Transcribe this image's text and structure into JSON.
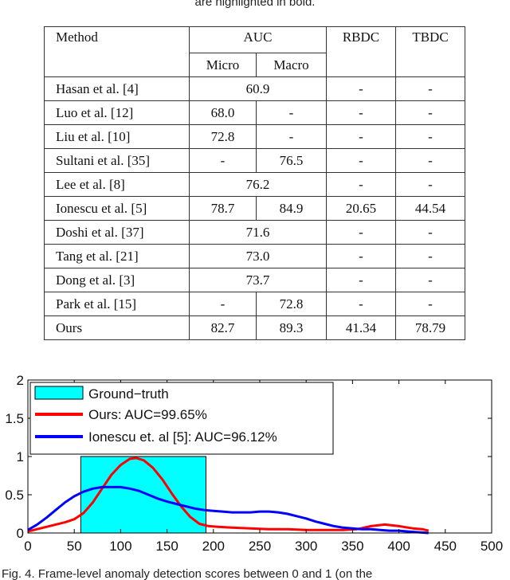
{
  "caption_top": "are highlighted in bold.",
  "caption_bottom": "Fig. 4. Frame-level anomaly detection scores between 0 and 1 (on the",
  "table": {
    "headers": {
      "method": "Method",
      "auc": "AUC",
      "micro": "Micro",
      "macro": "Macro",
      "rbdc": "RBDC",
      "tbdc": "TBDC"
    },
    "rows": [
      {
        "method": "Hasan et al. [4]",
        "auc": "60.9",
        "rbdc": "-",
        "tbdc": "-"
      },
      {
        "method": "Luo et al. [12]",
        "micro": "68.0",
        "macro": "-",
        "rbdc": "-",
        "tbdc": "-"
      },
      {
        "method": "Liu et al. [10]",
        "micro": "72.8",
        "macro": "-",
        "rbdc": "-",
        "tbdc": "-"
      },
      {
        "method": "Sultani et al. [35]",
        "micro": "-",
        "macro": "76.5",
        "rbdc": "-",
        "tbdc": "-"
      },
      {
        "method": "Lee et al. [8]",
        "auc": "76.2",
        "rbdc": "-",
        "tbdc": "-"
      },
      {
        "method": "Ionescu et al. [5]",
        "micro": "78.7",
        "macro": "84.9",
        "rbdc": "20.65",
        "tbdc": "44.54"
      },
      {
        "method": "Doshi et al. [37]",
        "auc": "71.6",
        "rbdc": "-",
        "tbdc": "-"
      },
      {
        "method": "Tang et al. [21]",
        "auc": "73.0",
        "rbdc": "-",
        "tbdc": "-"
      },
      {
        "method": "Dong et al. [3]",
        "auc": "73.7",
        "rbdc": "-",
        "tbdc": "-"
      },
      {
        "method": "Park et al. [15]",
        "micro": "-",
        "macro": "72.8",
        "rbdc": "-",
        "tbdc": "-"
      },
      {
        "method": "Ours",
        "micro": "82.7",
        "macro": "89.3",
        "rbdc": "41.34",
        "tbdc": "78.79"
      }
    ]
  },
  "chart_data": {
    "type": "line",
    "x_ticks": [
      "0",
      "50",
      "100",
      "150",
      "200",
      "250",
      "300",
      "350",
      "400",
      "450",
      "500"
    ],
    "y_ticks": [
      "0",
      "0.5",
      "1",
      "1.5",
      "2"
    ],
    "xlim": [
      0,
      500
    ],
    "ylim": [
      0,
      2
    ],
    "grid": false,
    "legend_position": "top-left",
    "ground_truth": {
      "name": "Ground−truth",
      "x_start": 57,
      "x_end": 192,
      "value": 1.0,
      "color": "#00ffff"
    },
    "series": [
      {
        "name": "Ours: AUC=99.65%",
        "color": "#ff0000",
        "x": [
          0,
          10,
          20,
          30,
          40,
          50,
          60,
          70,
          80,
          90,
          100,
          110,
          117,
          125,
          135,
          145,
          155,
          165,
          175,
          185,
          195,
          205,
          220,
          240,
          260,
          280,
          300,
          320,
          340,
          355,
          370,
          385,
          400,
          415,
          425,
          432
        ],
        "y": [
          0.02,
          0.05,
          0.08,
          0.11,
          0.14,
          0.18,
          0.26,
          0.4,
          0.58,
          0.76,
          0.89,
          0.97,
          0.98,
          0.95,
          0.85,
          0.7,
          0.52,
          0.35,
          0.21,
          0.12,
          0.09,
          0.08,
          0.07,
          0.06,
          0.05,
          0.05,
          0.04,
          0.04,
          0.04,
          0.05,
          0.09,
          0.11,
          0.09,
          0.06,
          0.05,
          0.03
        ]
      },
      {
        "name": "Ionescu et. al [5]: AUC=96.12%",
        "color": "#0000ff",
        "x": [
          0,
          10,
          20,
          30,
          40,
          50,
          60,
          70,
          80,
          90,
          100,
          110,
          120,
          130,
          140,
          150,
          160,
          170,
          180,
          190,
          200,
          210,
          220,
          230,
          240,
          250,
          260,
          270,
          280,
          290,
          300,
          310,
          320,
          330,
          340,
          350,
          360,
          370,
          380,
          390,
          400,
          410,
          420,
          432
        ],
        "y": [
          0.04,
          0.11,
          0.2,
          0.3,
          0.4,
          0.48,
          0.54,
          0.58,
          0.6,
          0.6,
          0.6,
          0.58,
          0.55,
          0.5,
          0.45,
          0.41,
          0.38,
          0.35,
          0.32,
          0.3,
          0.29,
          0.28,
          0.27,
          0.27,
          0.27,
          0.28,
          0.28,
          0.27,
          0.25,
          0.22,
          0.19,
          0.15,
          0.12,
          0.09,
          0.07,
          0.06,
          0.05,
          0.05,
          0.04,
          0.03,
          0.03,
          0.02,
          0.01,
          0.0
        ]
      }
    ]
  }
}
